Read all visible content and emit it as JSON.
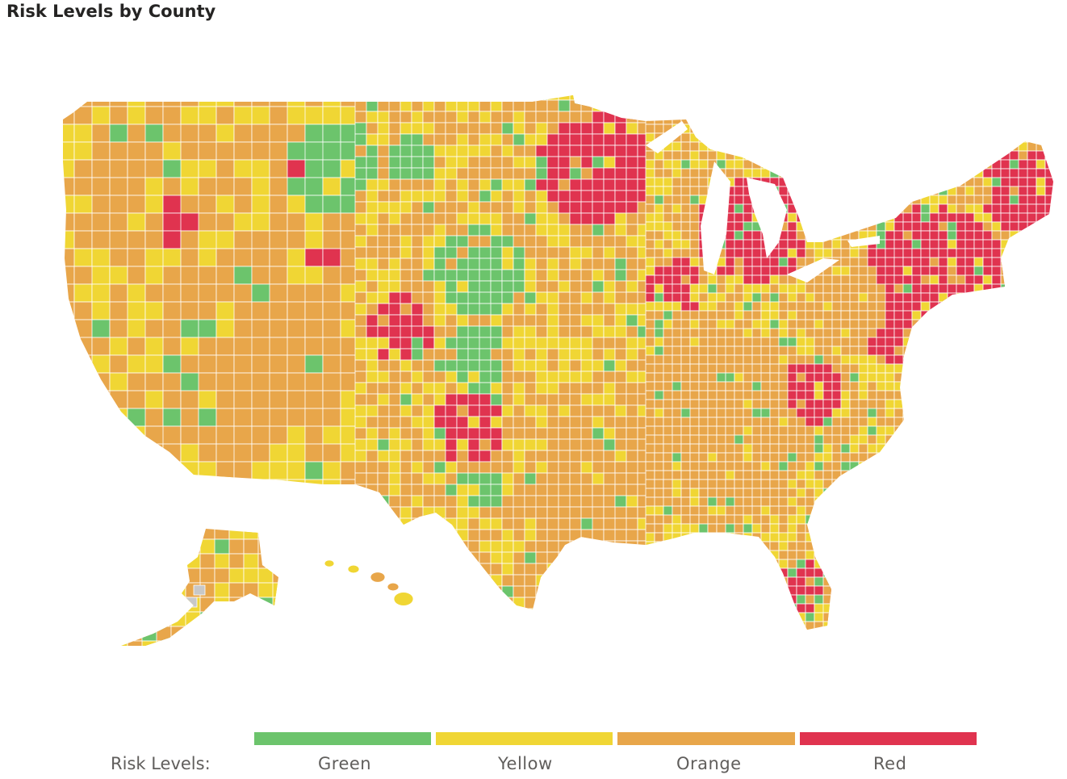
{
  "title": "Risk Levels by County",
  "legend": {
    "prefix": "Risk Levels:",
    "items": [
      {
        "label": "Green",
        "color": "#6cc46c"
      },
      {
        "label": "Yellow",
        "color": "#f0d634"
      },
      {
        "label": "Orange",
        "color": "#e8a64a"
      },
      {
        "label": "Red",
        "color": "#e0334f"
      }
    ]
  },
  "colors": {
    "nodata": "#c8c8c8",
    "border": "#ffffff"
  }
}
